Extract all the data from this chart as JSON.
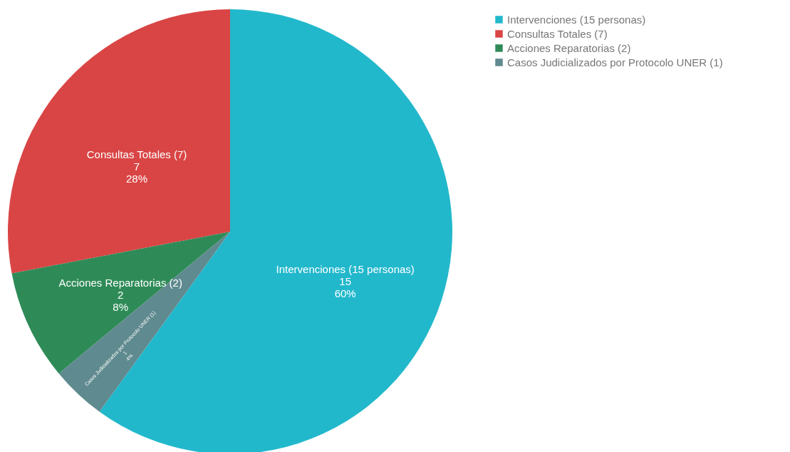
{
  "chart_data": {
    "type": "pie",
    "categories": [
      "Intervenciones (15 personas)",
      "Consultas Totales (7)",
      "Acciones Reparatorias (2)",
      "Casos Judicializados por Protocolo UNER (1)"
    ],
    "values": [
      15,
      7,
      2,
      1
    ],
    "colors": [
      "#22b8cc",
      "#d94545",
      "#2e8b57",
      "#5f8a8f"
    ],
    "value_labels": [
      "15\n60%",
      "7\n28%",
      "2\n8%",
      "1\n4%"
    ],
    "legend": "top right"
  }
}
